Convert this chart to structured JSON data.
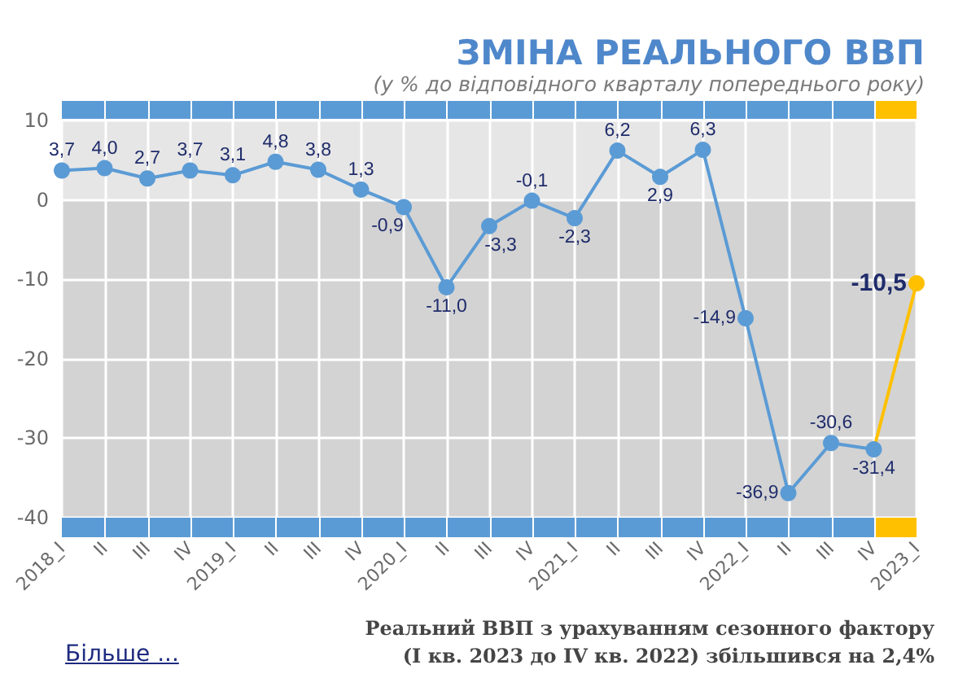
{
  "chart_data": {
    "type": "line",
    "title": "ЗМІНА РЕАЛЬНОГО ВВП",
    "subtitle": "(у % до відповідного кварталу попереднього року)",
    "categories": [
      "2018_I",
      "II",
      "III",
      "IV",
      "2019_I",
      "II",
      "III",
      "IV",
      "2020_I",
      "II",
      "III",
      "IV",
      "2021_I",
      "II",
      "III",
      "IV",
      "2022_I",
      "II",
      "III",
      "IV",
      "2023_I"
    ],
    "values": [
      3.7,
      4.0,
      2.7,
      3.7,
      3.1,
      4.8,
      3.8,
      1.3,
      -0.9,
      -11.0,
      -3.3,
      -0.1,
      -2.3,
      6.2,
      2.9,
      6.3,
      -14.9,
      -36.9,
      -30.6,
      -31.4,
      -10.5
    ],
    "colors": [
      "#5b9bd5",
      "#5b9bd5",
      "#5b9bd5",
      "#5b9bd5",
      "#5b9bd5",
      "#5b9bd5",
      "#5b9bd5",
      "#5b9bd5",
      "#5b9bd5",
      "#5b9bd5",
      "#5b9bd5",
      "#5b9bd5",
      "#5b9bd5",
      "#5b9bd5",
      "#5b9bd5",
      "#5b9bd5",
      "#5b9bd5",
      "#5b9bd5",
      "#5b9bd5",
      "#5b9bd5",
      "#ffc000"
    ],
    "value_labels": [
      "3,7",
      "4,0",
      "2,7",
      "3,7",
      "3,1",
      "4,8",
      "3,8",
      "1,3",
      "-0,9",
      "-11,0",
      "-3,3",
      "-0,1",
      "-2,3",
      "6,2",
      "2,9",
      "6,3",
      "-14,9",
      "-36,9",
      "-30,6",
      "-31,4",
      "-10,5"
    ],
    "ylim": [
      -40,
      10
    ],
    "yticks": [
      -40,
      -30,
      -20,
      -10,
      0,
      10
    ],
    "grid": true,
    "marker": "circle",
    "line_style": "solid",
    "bands": [
      {
        "axis": "y",
        "from": 0,
        "to": 10,
        "color": "#e6e6e6"
      },
      {
        "axis": "y",
        "from": -40,
        "to": 0,
        "color": "#d3d3d3"
      }
    ],
    "annotations": [
      "Реальний ВВП з урахуванням сезонного фактору\n(I кв. 2023 до IV кв. 2022) збільшився на 2,4%",
      "Більше ..."
    ]
  }
}
